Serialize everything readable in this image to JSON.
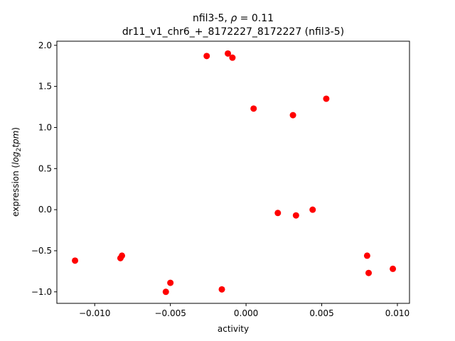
{
  "chart_data": {
    "type": "scatter",
    "title_line1_prefix": "nfil3-5, ",
    "title_line1_symbol": "ρ",
    "title_line1_suffix": " = 0.11",
    "title_line2": "dr11_v1_chr6_+_8172227_8172227 (nfil3-5)",
    "xlabel": "activity",
    "ylabel_prefix": "expression (",
    "ylabel_math_base": "log",
    "ylabel_math_sub": "2",
    "ylabel_math_rest": "tpm",
    "ylabel_suffix": ")",
    "xlim": [
      -0.0125,
      0.0108
    ],
    "ylim": [
      -1.14,
      2.05
    ],
    "xticks": [
      -0.01,
      -0.005,
      0.0,
      0.005,
      0.01
    ],
    "xtick_labels": [
      "−0.010",
      "−0.005",
      "0.000",
      "0.005",
      "0.010"
    ],
    "yticks": [
      -1.0,
      -0.5,
      0.0,
      0.5,
      1.0,
      1.5,
      2.0
    ],
    "ytick_labels": [
      "−1.0",
      "−0.5",
      "0.0",
      "0.5",
      "1.0",
      "1.5",
      "2.0"
    ],
    "grid": false,
    "marker_color": "#ff0000",
    "points": [
      {
        "x": -0.0113,
        "y": -0.62
      },
      {
        "x": -0.0083,
        "y": -0.59
      },
      {
        "x": -0.0082,
        "y": -0.56
      },
      {
        "x": -0.0053,
        "y": -1.0
      },
      {
        "x": -0.005,
        "y": -0.89
      },
      {
        "x": -0.0026,
        "y": 1.87
      },
      {
        "x": -0.0016,
        "y": -0.97
      },
      {
        "x": -0.0012,
        "y": 1.9
      },
      {
        "x": -0.0009,
        "y": 1.85
      },
      {
        "x": 0.0005,
        "y": 1.23
      },
      {
        "x": 0.0021,
        "y": -0.04
      },
      {
        "x": 0.0031,
        "y": 1.15
      },
      {
        "x": 0.0033,
        "y": -0.07
      },
      {
        "x": 0.0044,
        "y": 0.0
      },
      {
        "x": 0.0053,
        "y": 1.35
      },
      {
        "x": 0.008,
        "y": -0.56
      },
      {
        "x": 0.0081,
        "y": -0.77
      },
      {
        "x": 0.0097,
        "y": -0.72
      }
    ]
  }
}
